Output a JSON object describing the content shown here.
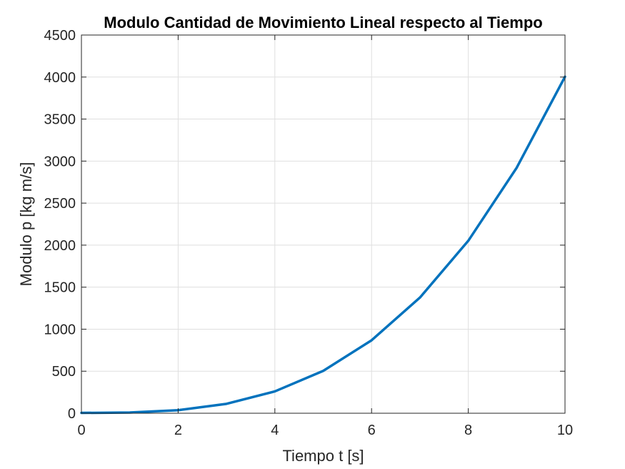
{
  "chart_data": {
    "type": "line",
    "title": "Modulo Cantidad de Movimiento Lineal respecto al Tiempo",
    "xlabel": "Tiempo t [s]",
    "ylabel": "Modulo p [kg m/s]",
    "xlim": [
      0,
      10
    ],
    "ylim": [
      0,
      4500
    ],
    "xticks": [
      0,
      2,
      4,
      6,
      8,
      10
    ],
    "yticks": [
      0,
      500,
      1000,
      1500,
      2000,
      2500,
      3000,
      3500,
      4000,
      4500
    ],
    "grid": true,
    "series": [
      {
        "color": "#0072BD",
        "x": [
          0,
          1,
          2,
          3,
          4,
          5,
          6,
          7,
          8,
          9,
          10
        ],
        "y": [
          4,
          8,
          36,
          112,
          260,
          504,
          868,
          1376,
          2052,
          2920,
          4004
        ]
      }
    ]
  }
}
